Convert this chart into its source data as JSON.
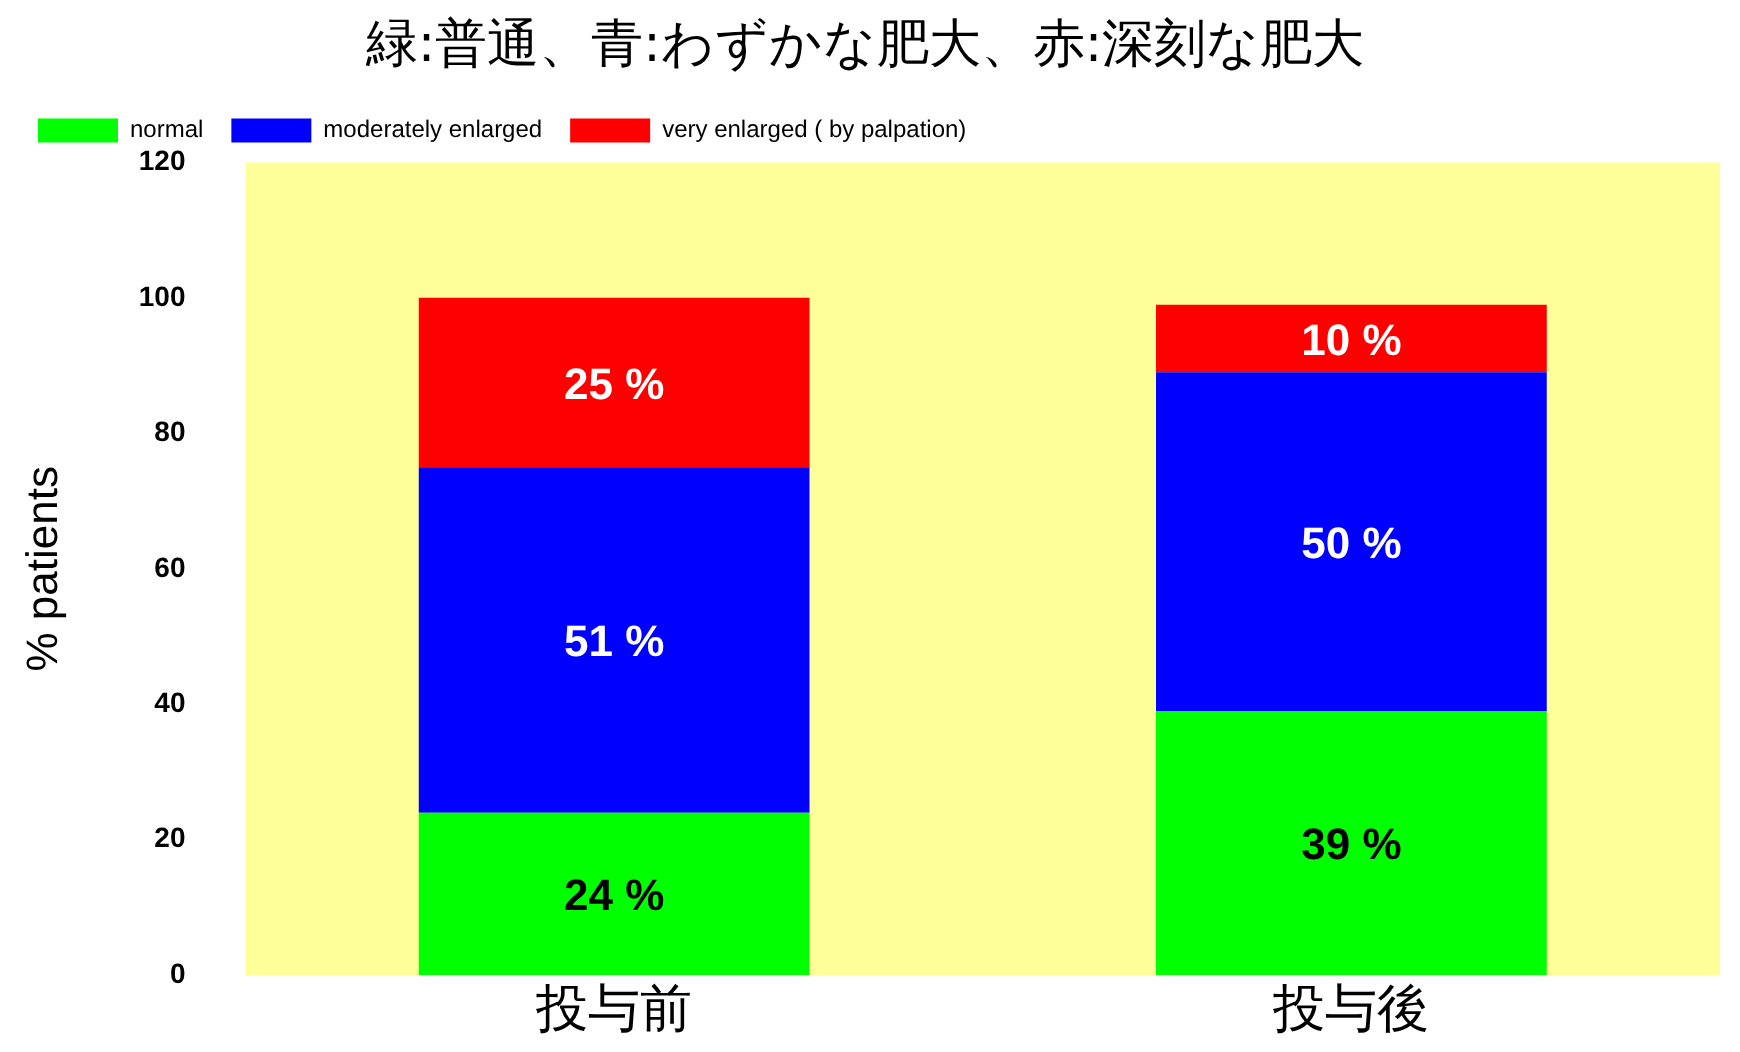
{
  "chart_data": {
    "type": "bar",
    "title": "緑:普通、青:わずかな肥大、赤:深刻な肥大",
    "ylabel": "% patients",
    "categories": [
      "投与前",
      "投与後"
    ],
    "stacked": true,
    "ylim": [
      0,
      120
    ],
    "yticks": [
      0,
      20,
      40,
      60,
      80,
      100,
      120
    ],
    "grid": false,
    "legend": "top",
    "series": [
      {
        "name": "normal",
        "color": "#00ff00",
        "values": [
          24,
          39
        ],
        "value_labels": [
          "24 %",
          "39 %"
        ]
      },
      {
        "name": "moderately enlarged",
        "color": "#0000ff",
        "values": [
          51,
          50
        ],
        "value_labels": [
          "51 %",
          "50 %"
        ]
      },
      {
        "name": "very enlarged ( by palpation)",
        "color": "#ff0000",
        "values": [
          25,
          10
        ],
        "value_labels": [
          "25 %",
          "10 %"
        ]
      }
    ]
  }
}
